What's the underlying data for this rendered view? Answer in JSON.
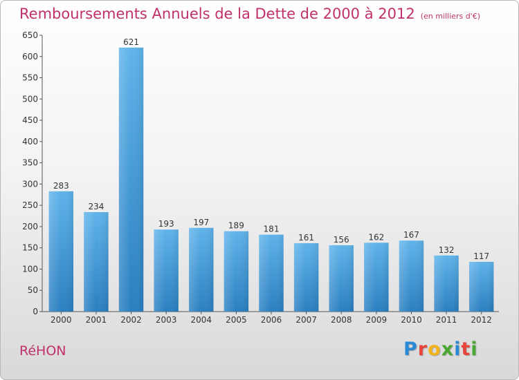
{
  "title": "Remboursements Annuels de la Dette de 2000 à 2012",
  "unit": "(en milliers d'€)",
  "commune": "RéHON",
  "logo": {
    "letters": [
      "P",
      "r",
      "o",
      "x",
      "i",
      "t",
      "i"
    ],
    "colors": [
      "#2b8ad6",
      "#e8453c",
      "#f2b31a",
      "#4aa832",
      "#2b8ad6",
      "#e8453c",
      "#4aa832"
    ]
  },
  "colors": {
    "bar_top": "#5fb3ea",
    "bar_bottom": "#2a7fc0",
    "accent": "#c0306a"
  },
  "chart_data": {
    "type": "bar",
    "categories": [
      "2000",
      "2001",
      "2002",
      "2003",
      "2004",
      "2005",
      "2006",
      "2007",
      "2008",
      "2009",
      "2010",
      "2011",
      "2012"
    ],
    "values": [
      283,
      234,
      621,
      193,
      197,
      189,
      181,
      161,
      156,
      162,
      167,
      132,
      117
    ],
    "data_labels": [
      "283",
      "234",
      "621",
      "193",
      "197",
      "189",
      "181",
      "161",
      "156",
      "162",
      "167",
      "132",
      "117"
    ],
    "yticks": [
      "0",
      "50",
      "100",
      "150",
      "200",
      "250",
      "300",
      "350",
      "400",
      "450",
      "500",
      "550",
      "600",
      "650"
    ],
    "ylim": [
      0,
      650
    ],
    "grid": false,
    "legend": "none"
  }
}
